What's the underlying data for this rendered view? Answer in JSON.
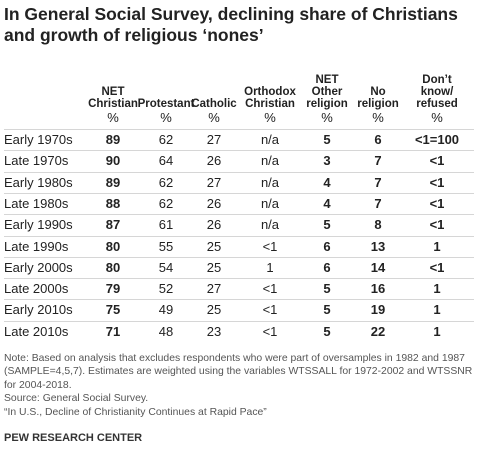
{
  "title": "In General Social Survey, declining share of Christians and growth of religious ‘nones’",
  "table": {
    "header": [
      "NET\nChristian",
      "Protestant",
      "Catholic",
      "Orthodox\nChristian",
      "NET\nOther\nreligion",
      "No\nreligion",
      "Don’t\nknow/\nrefused"
    ],
    "units": [
      "%",
      "%",
      "%",
      "%",
      "%",
      "%",
      "%"
    ],
    "rows": [
      [
        "Early 1970s",
        "89",
        "62",
        "27",
        "n/a",
        "5",
        "6",
        "<1=100"
      ],
      [
        "Late 1970s",
        "90",
        "64",
        "26",
        "n/a",
        "3",
        "7",
        "<1"
      ],
      [
        "Early 1980s",
        "89",
        "62",
        "27",
        "n/a",
        "4",
        "7",
        "<1"
      ],
      [
        "Late 1980s",
        "88",
        "62",
        "26",
        "n/a",
        "4",
        "7",
        "<1"
      ],
      [
        "Early 1990s",
        "87",
        "61",
        "26",
        "n/a",
        "5",
        "8",
        "<1"
      ],
      [
        "Late 1990s",
        "80",
        "55",
        "25",
        "<1",
        "6",
        "13",
        "1"
      ],
      [
        "Early 2000s",
        "80",
        "54",
        "25",
        "1",
        "6",
        "14",
        "<1"
      ],
      [
        "Late 2000s",
        "79",
        "52",
        "27",
        "<1",
        "5",
        "16",
        "1"
      ],
      [
        "Early 2010s",
        "75",
        "49",
        "25",
        "<1",
        "5",
        "19",
        "1"
      ],
      [
        "Late 2010s",
        "71",
        "48",
        "23",
        "<1",
        "5",
        "22",
        "1"
      ]
    ]
  },
  "notes": [
    "Note: Based on analysis that excludes respondents who were part of oversamples in 1982 and 1987 (SAMPLE=4,5,7). Estimates are weighted using the variables WTSSALL for 1972-2002 and WTSSNR for 2004-2018.",
    "Source: General Social Survey.",
    "“In U.S., Decline of Christianity Continues at Rapid Pace”"
  ],
  "footer": "PEW RESEARCH CENTER"
}
